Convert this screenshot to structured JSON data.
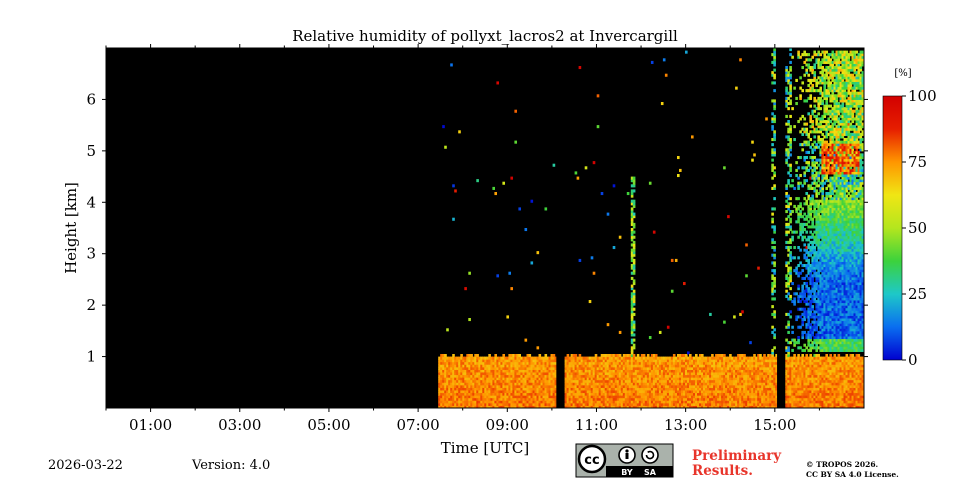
{
  "chart_data": {
    "type": "heatmap",
    "title": "Relative humidity of pollyxt_lacros2 at Invercargill",
    "xlabel": "Time [UTC]",
    "ylabel": "Height [km]",
    "x_range_hours": [
      0,
      17
    ],
    "ylim_km": [
      0,
      7
    ],
    "x_ticks": [
      {
        "value": 1,
        "label": "01:00"
      },
      {
        "value": 3,
        "label": "03:00"
      },
      {
        "value": 5,
        "label": "05:00"
      },
      {
        "value": 7,
        "label": "07:00"
      },
      {
        "value": 9,
        "label": "09:00"
      },
      {
        "value": 11,
        "label": "11:00"
      },
      {
        "value": 13,
        "label": "13:00"
      },
      {
        "value": 15,
        "label": "15:00"
      }
    ],
    "x_minor_ticks": [
      0,
      2,
      4,
      6,
      8,
      10,
      12,
      14,
      16
    ],
    "y_ticks": [
      {
        "value": 1,
        "label": "1"
      },
      {
        "value": 2,
        "label": "2"
      },
      {
        "value": 3,
        "label": "3"
      },
      {
        "value": 4,
        "label": "4"
      },
      {
        "value": 5,
        "label": "5"
      },
      {
        "value": 6,
        "label": "6"
      }
    ],
    "colorbar": {
      "unit": "[%]",
      "min": 0,
      "max": 100,
      "ticks": [
        {
          "value": 0,
          "label": "0"
        },
        {
          "value": 25,
          "label": "25"
        },
        {
          "value": 50,
          "label": "50"
        },
        {
          "value": 75,
          "label": "75"
        },
        {
          "value": 100,
          "label": "100"
        }
      ],
      "colors": [
        "#0000d0",
        "#0a6ef0",
        "#1ec8c8",
        "#3cd23c",
        "#b4e61e",
        "#f0e614",
        "#ff9600",
        "#e61e00",
        "#d20000"
      ]
    },
    "no_data_color": "#000000",
    "data_start_hour": 7.45,
    "data_gaps_hours": [
      [
        10.1,
        10.25
      ],
      [
        15.05,
        15.22
      ]
    ],
    "boundary_layer": {
      "top_km": 1.0,
      "typical_rh_percent": 78
    },
    "features": [
      {
        "name": "moist plume",
        "hour": 11.8,
        "height_km": [
          1.0,
          4.5
        ],
        "rh_percent": 45
      },
      {
        "name": "moist layers",
        "hours": [
          15.3,
          16.9
        ],
        "height_km": [
          1.2,
          2.2
        ],
        "rh_percent": 25
      },
      {
        "name": "upper cloud",
        "hours": [
          16.0,
          16.9
        ],
        "height_km": [
          4.5,
          5.1
        ],
        "rh_percent": 80
      }
    ]
  },
  "footer": {
    "date": "2026-03-22",
    "version": "Version: 4.0",
    "preliminary": [
      "Preliminary",
      "Results."
    ],
    "copyright": [
      "© TROPOS 2026.",
      "CC BY SA 4.0 License."
    ],
    "license_badge": {
      "cc": "cc",
      "by": "BY",
      "sa": "SA"
    }
  }
}
